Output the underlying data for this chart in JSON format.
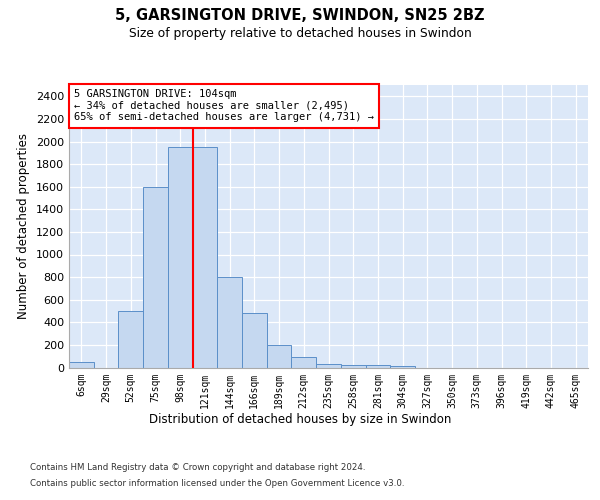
{
  "title": "5, GARSINGTON DRIVE, SWINDON, SN25 2BZ",
  "subtitle": "Size of property relative to detached houses in Swindon",
  "xlabel": "Distribution of detached houses by size in Swindon",
  "ylabel": "Number of detached properties",
  "categories": [
    "6sqm",
    "29sqm",
    "52sqm",
    "75sqm",
    "98sqm",
    "121sqm",
    "144sqm",
    "166sqm",
    "189sqm",
    "212sqm",
    "235sqm",
    "258sqm",
    "281sqm",
    "304sqm",
    "327sqm",
    "350sqm",
    "373sqm",
    "396sqm",
    "419sqm",
    "442sqm",
    "465sqm"
  ],
  "values": [
    50,
    0,
    500,
    1600,
    1950,
    1950,
    800,
    480,
    200,
    90,
    30,
    25,
    20,
    10,
    0,
    0,
    0,
    0,
    0,
    0,
    0
  ],
  "bar_color": "#c5d8f0",
  "bar_edge_color": "#5b8fc9",
  "ylim": [
    0,
    2500
  ],
  "yticks": [
    0,
    200,
    400,
    600,
    800,
    1000,
    1200,
    1400,
    1600,
    1800,
    2000,
    2200,
    2400
  ],
  "redline_x": 4.5,
  "redline_label": "5 GARSINGTON DRIVE: 104sqm",
  "annotation_line1": "← 34% of detached houses are smaller (2,495)",
  "annotation_line2": "65% of semi-detached houses are larger (4,731) →",
  "bg_color": "#dce8f8",
  "grid_color": "#ffffff",
  "footnote1": "Contains HM Land Registry data © Crown copyright and database right 2024.",
  "footnote2": "Contains public sector information licensed under the Open Government Licence v3.0."
}
